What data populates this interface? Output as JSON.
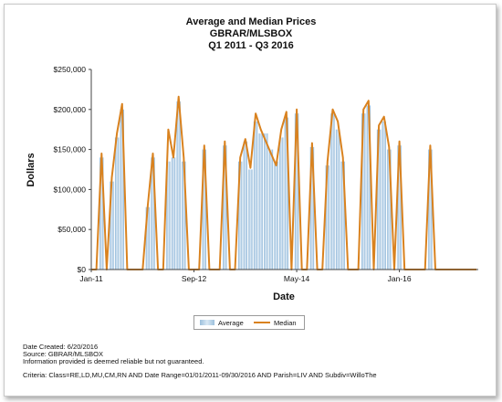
{
  "chart_data": {
    "type": "bar",
    "title": "Average and Median Prices",
    "subtitle1": "GBRAR/MLSBOX",
    "subtitle2": "Q1 2011 - Q3 2016",
    "xlabel": "Date",
    "ylabel": "Dollars",
    "ylim": [
      0,
      250000
    ],
    "yticks": [
      "$0",
      "$50,000",
      "$100,000",
      "$150,000",
      "$200,000",
      "$250,000"
    ],
    "xtick_labels": [
      "Jan-11",
      "Sep-12",
      "May-14",
      "Jan-16"
    ],
    "grid": false,
    "legend": "bottom-center",
    "series": [
      {
        "name": "Average",
        "color": "#a9c8e2",
        "values": [
          0,
          0,
          140000,
          0,
          110000,
          165000,
          200000,
          0,
          0,
          0,
          0,
          78000,
          140000,
          0,
          0,
          135000,
          140000,
          210000,
          135000,
          0,
          0,
          0,
          150000,
          0,
          0,
          0,
          155000,
          0,
          0,
          135000,
          160000,
          125000,
          185000,
          170000,
          170000,
          150000,
          135000,
          165000,
          190000,
          0,
          195000,
          0,
          0,
          153000,
          0,
          0,
          130000,
          195000,
          175000,
          135000,
          0,
          0,
          0,
          195000,
          205000,
          0,
          175000,
          185000,
          150000,
          0,
          155000,
          0,
          0,
          0,
          0,
          0,
          150000,
          0,
          0,
          0,
          0,
          0,
          0,
          0,
          0,
          0
        ]
      },
      {
        "name": "Median",
        "color": "#d9821f",
        "values": [
          0,
          0,
          145000,
          0,
          115000,
          170000,
          207000,
          0,
          0,
          0,
          0,
          80000,
          145000,
          0,
          0,
          175000,
          140000,
          216000,
          140000,
          0,
          0,
          0,
          155000,
          0,
          0,
          0,
          160000,
          0,
          0,
          140000,
          163000,
          127000,
          195000,
          175000,
          160000,
          145000,
          130000,
          175000,
          197000,
          0,
          200000,
          0,
          0,
          158000,
          0,
          0,
          135000,
          200000,
          185000,
          140000,
          0,
          0,
          0,
          200000,
          211000,
          0,
          180000,
          191000,
          153000,
          0,
          160000,
          0,
          0,
          0,
          0,
          0,
          155000,
          0,
          0,
          0,
          0,
          0,
          0,
          0,
          0,
          0
        ]
      }
    ]
  },
  "legend": {
    "average_label": "Average",
    "median_label": "Median"
  },
  "footer": {
    "created": "Date Created: 6/20/2016",
    "source": "Source: GBRAR/MLSBOX",
    "disclaimer": "Information provided is deemed reliable but not guaranteed.",
    "criteria": "Criteria: Class=RE,LD,MU,CM,RN AND Date Range=01/01/2011-09/30/2016 AND Parish=LIV AND Subdiv=WilloThe"
  }
}
